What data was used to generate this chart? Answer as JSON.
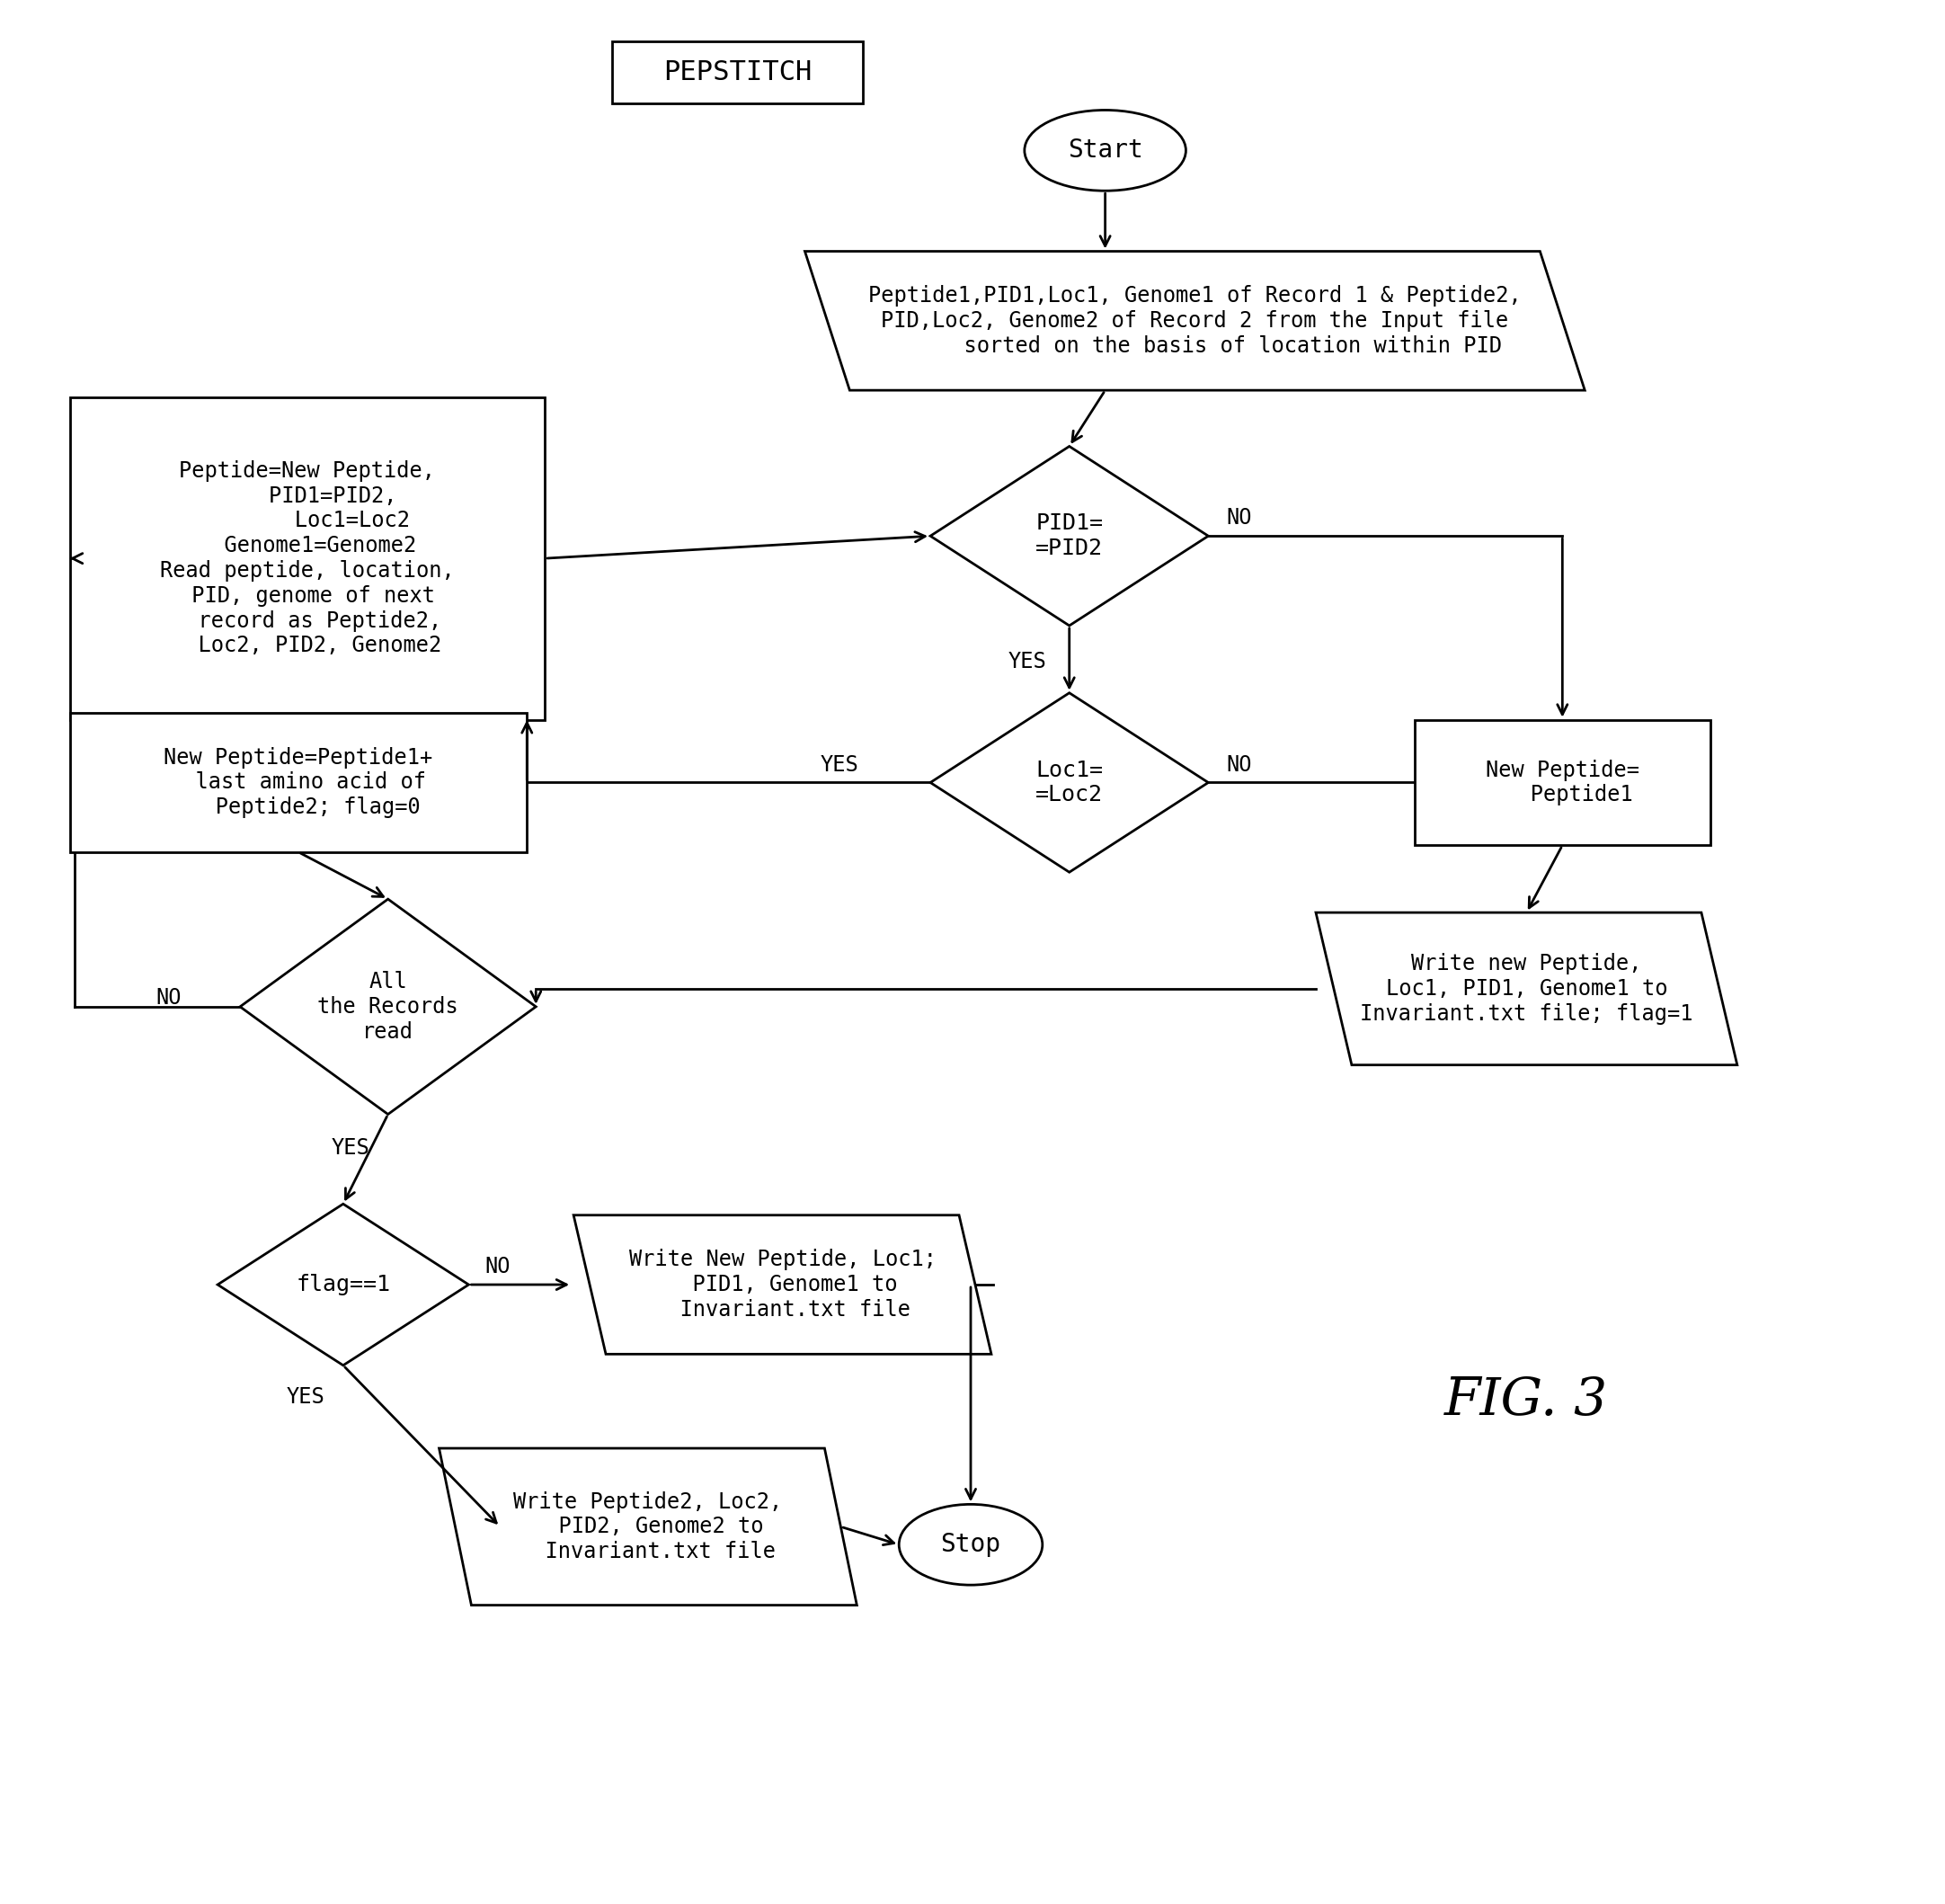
{
  "background_color": "#ffffff",
  "lw": 2.0,
  "pepstitch_text": "PEPSTITCH",
  "start_text": "Start",
  "stop_text": "Stop",
  "fig_label": "FIG. 3",
  "input_box_text": "Peptide1,PID1,Loc1, Genome1 of Record 1 & Peptide2,\nPID,Loc2, Genome2 of Record 2 from the Input file\n      sorted on the basis of location within PID",
  "pid_text": "PID1=\n=PID2",
  "loc_text": "Loc1=\n=Loc2",
  "update_box_text": "Peptide=New Peptide,\n    PID1=PID2,\n       Loc1=Loc2\n  Genome1=Genome2\nRead peptide, location,\n PID, genome of next\n  record as Peptide2,\n  Loc2, PID2, Genome2",
  "new_pep1_text": "New Peptide=Peptide1+\n  last amino acid of\n   Peptide2; flag=0",
  "new_pep2_text": "New Peptide=\n   Peptide1",
  "write_inv_text": "Write new Peptide,\nLoc1, PID1, Genome1 to\nInvariant.txt file; flag=1",
  "all_records_text": "All\nthe Records\nread",
  "flag_text": "flag==1",
  "write_no_flag_text": "Write New Peptide, Loc1;\n  PID1, Genome1 to\n  Invariant.txt file",
  "write_yes_flag_text": "Write Peptide2, Loc2,\n  PID2, Genome2 to\n  Invariant.txt file"
}
